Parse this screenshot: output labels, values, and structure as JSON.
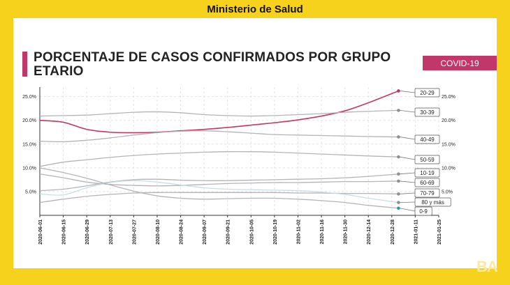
{
  "header": {
    "title": "Ministerio de Salud"
  },
  "chart_title": "PORCENTAJE DE CASOS CONFIRMADOS POR GRUPO ETARIO",
  "badge": "COVID-19",
  "logo": "BA",
  "colors": {
    "highlight": "#c2376a",
    "muted": "#b4b4b8",
    "muted_light": "#c9dde6",
    "teal_point": "#2a9d9a"
  },
  "chart_data": {
    "type": "line",
    "title": "PORCENTAJE DE CASOS CONFIRMADOS POR GRUPO ETARIO",
    "xlabel": "",
    "ylabel": "",
    "x_ticks": [
      "2020-06-01",
      "2020-06-15",
      "2020-06-29",
      "2020-07-13",
      "2020-07-27",
      "2020-08-10",
      "2020-08-24",
      "2020-09-07",
      "2020-09-21",
      "2020-10-05",
      "2020-10-19",
      "2020-11-02",
      "2020-11-16",
      "2020-11-30",
      "2020-12-14",
      "2020-12-28",
      "2021-01-11",
      "2021-01-25"
    ],
    "x_range": [
      "2020-06-01",
      "2021-01-25"
    ],
    "y_ticks": [
      "5.0%",
      "10.0%",
      "15.0%",
      "20.0%",
      "25.0%"
    ],
    "ylim": [
      0,
      27
    ],
    "grid": true,
    "x": [
      "2020-06-01",
      "2020-06-15",
      "2020-06-29",
      "2020-07-13",
      "2020-07-27",
      "2020-08-10",
      "2020-08-24",
      "2020-09-07",
      "2020-09-21",
      "2020-10-05",
      "2020-10-19",
      "2020-11-02",
      "2020-11-16",
      "2020-11-30",
      "2020-12-14",
      "2021-01-01"
    ],
    "series": [
      {
        "name": "20-29",
        "highlight": true,
        "values": [
          20.0,
          19.6,
          18.1,
          17.5,
          17.4,
          17.5,
          17.8,
          18.1,
          18.5,
          19.0,
          19.5,
          20.1,
          20.9,
          22.0,
          23.7,
          26.2
        ]
      },
      {
        "name": "30-39",
        "values": [
          20.9,
          21.0,
          21.1,
          21.4,
          21.7,
          21.8,
          21.6,
          21.2,
          21.0,
          20.9,
          21.0,
          21.2,
          21.4,
          21.7,
          21.9,
          22.1
        ]
      },
      {
        "name": "40-49",
        "values": [
          15.6,
          15.5,
          15.8,
          16.3,
          16.9,
          17.4,
          17.7,
          17.8,
          17.6,
          17.3,
          17.0,
          16.9,
          16.8,
          16.7,
          16.6,
          16.5
        ]
      },
      {
        "name": "50-59",
        "values": [
          10.3,
          11.2,
          11.7,
          12.2,
          12.6,
          12.9,
          13.1,
          13.3,
          13.4,
          13.4,
          13.3,
          13.1,
          12.9,
          12.7,
          12.5,
          12.3
        ]
      },
      {
        "name": "10-19",
        "values": [
          5.2,
          5.5,
          6.2,
          7.0,
          7.5,
          7.6,
          7.4,
          7.3,
          7.3,
          7.4,
          7.5,
          7.6,
          7.7,
          7.9,
          8.2,
          8.7
        ]
      },
      {
        "name": "60-69",
        "values": [
          8.7,
          7.9,
          7.0,
          6.5,
          6.3,
          6.2,
          6.3,
          6.5,
          6.7,
          6.8,
          6.9,
          6.9,
          7.0,
          7.1,
          7.1,
          7.2
        ]
      },
      {
        "name": "70-79",
        "values": [
          2.7,
          3.4,
          4.0,
          4.4,
          4.7,
          4.8,
          4.8,
          4.8,
          4.8,
          4.8,
          4.8,
          4.7,
          4.7,
          4.6,
          4.6,
          4.5
        ]
      },
      {
        "name": "80 y más",
        "light": true,
        "values": [
          4.5,
          4.3,
          5.8,
          6.9,
          7.3,
          7.0,
          6.4,
          5.8,
          5.5,
          5.4,
          5.3,
          5.2,
          4.9,
          4.4,
          3.6,
          2.7
        ]
      },
      {
        "name": "0-9",
        "teal": true,
        "values": [
          10.0,
          9.0,
          7.8,
          6.4,
          5.1,
          4.1,
          3.6,
          3.4,
          3.5,
          3.6,
          3.6,
          3.4,
          3.1,
          2.7,
          2.1,
          1.5
        ]
      }
    ]
  }
}
